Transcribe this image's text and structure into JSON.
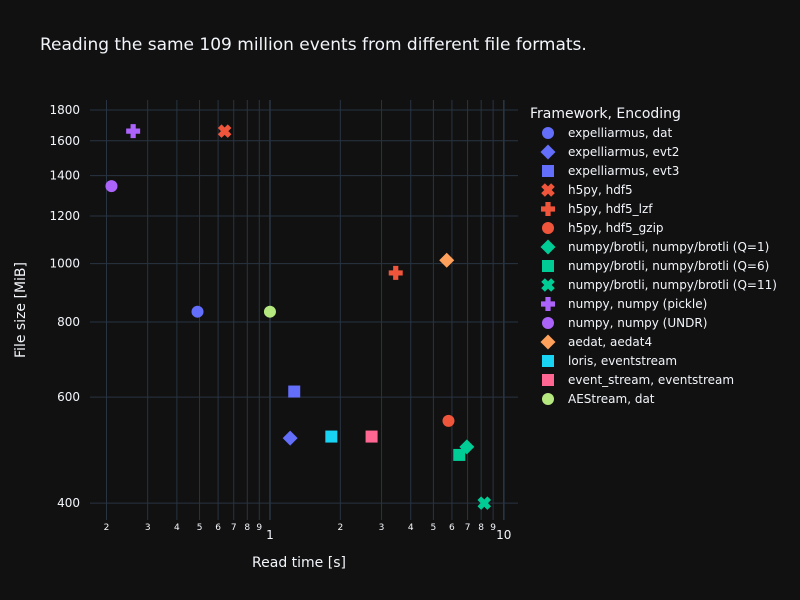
{
  "chart_data": {
    "type": "scatter",
    "title": "Reading the same 109 million events from different file formats.",
    "xlabel": "Read time [s]",
    "ylabel": "File size [MiB]",
    "x_scale": "log",
    "y_scale": "log",
    "xlim": [
      0.17,
      11.5
    ],
    "ylim": [
      375,
      1870
    ],
    "grid": true,
    "legend_title": "Framework, Encoding",
    "legend_position": "right",
    "x_major_ticks": [
      {
        "v": 1,
        "label": "1"
      },
      {
        "v": 10,
        "label": "10"
      }
    ],
    "x_minor_ticks": [
      {
        "v": 0.2,
        "label": "2"
      },
      {
        "v": 0.3,
        "label": "3"
      },
      {
        "v": 0.4,
        "label": "4"
      },
      {
        "v": 0.5,
        "label": "5"
      },
      {
        "v": 0.6,
        "label": "6"
      },
      {
        "v": 0.7,
        "label": "7"
      },
      {
        "v": 0.8,
        "label": "8"
      },
      {
        "v": 0.9,
        "label": "9"
      },
      {
        "v": 2,
        "label": "2"
      },
      {
        "v": 3,
        "label": "3"
      },
      {
        "v": 4,
        "label": "4"
      },
      {
        "v": 5,
        "label": "5"
      },
      {
        "v": 6,
        "label": "6"
      },
      {
        "v": 7,
        "label": "7"
      },
      {
        "v": 8,
        "label": "8"
      },
      {
        "v": 9,
        "label": "9"
      }
    ],
    "y_ticks": [
      {
        "v": 400,
        "label": "400"
      },
      {
        "v": 600,
        "label": "600"
      },
      {
        "v": 800,
        "label": "800"
      },
      {
        "v": 1000,
        "label": "1000"
      },
      {
        "v": 1200,
        "label": "1200"
      },
      {
        "v": 1400,
        "label": "1400"
      },
      {
        "v": 1600,
        "label": "1600"
      },
      {
        "v": 1800,
        "label": "1800"
      }
    ],
    "series": [
      {
        "name": "expelliarmus, dat",
        "color": "#636efa",
        "symbol": "circle",
        "x": 0.49,
        "y": 832
      },
      {
        "name": "expelliarmus, evt2",
        "color": "#636efa",
        "symbol": "diamond",
        "x": 1.22,
        "y": 513
      },
      {
        "name": "expelliarmus, evt3",
        "color": "#636efa",
        "symbol": "square",
        "x": 1.27,
        "y": 613
      },
      {
        "name": "h5py, hdf5",
        "color": "#ef553b",
        "symbol": "x",
        "x": 0.64,
        "y": 1660
      },
      {
        "name": "h5py, hdf5_lzf",
        "color": "#ef553b",
        "symbol": "cross",
        "x": 3.45,
        "y": 965
      },
      {
        "name": "h5py, hdf5_gzip",
        "color": "#ef553b",
        "symbol": "circle",
        "x": 5.8,
        "y": 548
      },
      {
        "name": "numpy/brotli, numpy/brotli (Q=1)",
        "color": "#00cc96",
        "symbol": "diamond",
        "x": 6.95,
        "y": 496
      },
      {
        "name": "numpy/brotli, numpy/brotli (Q=6)",
        "color": "#00cc96",
        "symbol": "square",
        "x": 6.45,
        "y": 481
      },
      {
        "name": "numpy/brotli, numpy/brotli (Q=11)",
        "color": "#00cc96",
        "symbol": "x",
        "x": 8.25,
        "y": 400
      },
      {
        "name": "numpy, numpy (pickle)",
        "color": "#ab63fa",
        "symbol": "cross",
        "x": 0.26,
        "y": 1660
      },
      {
        "name": "numpy, numpy (UNDR)",
        "color": "#ab63fa",
        "symbol": "circle",
        "x": 0.21,
        "y": 1345
      },
      {
        "name": "aedat, aedat4",
        "color": "#ffa15a",
        "symbol": "diamond",
        "x": 5.7,
        "y": 1013
      },
      {
        "name": "loris, eventstream",
        "color": "#19d3f3",
        "symbol": "square",
        "x": 1.83,
        "y": 516
      },
      {
        "name": "event_stream, eventstream",
        "color": "#ff6692",
        "symbol": "square",
        "x": 2.72,
        "y": 516
      },
      {
        "name": "AEStream, dat",
        "color": "#b6e880",
        "symbol": "circle",
        "x": 1.0,
        "y": 832
      }
    ]
  }
}
